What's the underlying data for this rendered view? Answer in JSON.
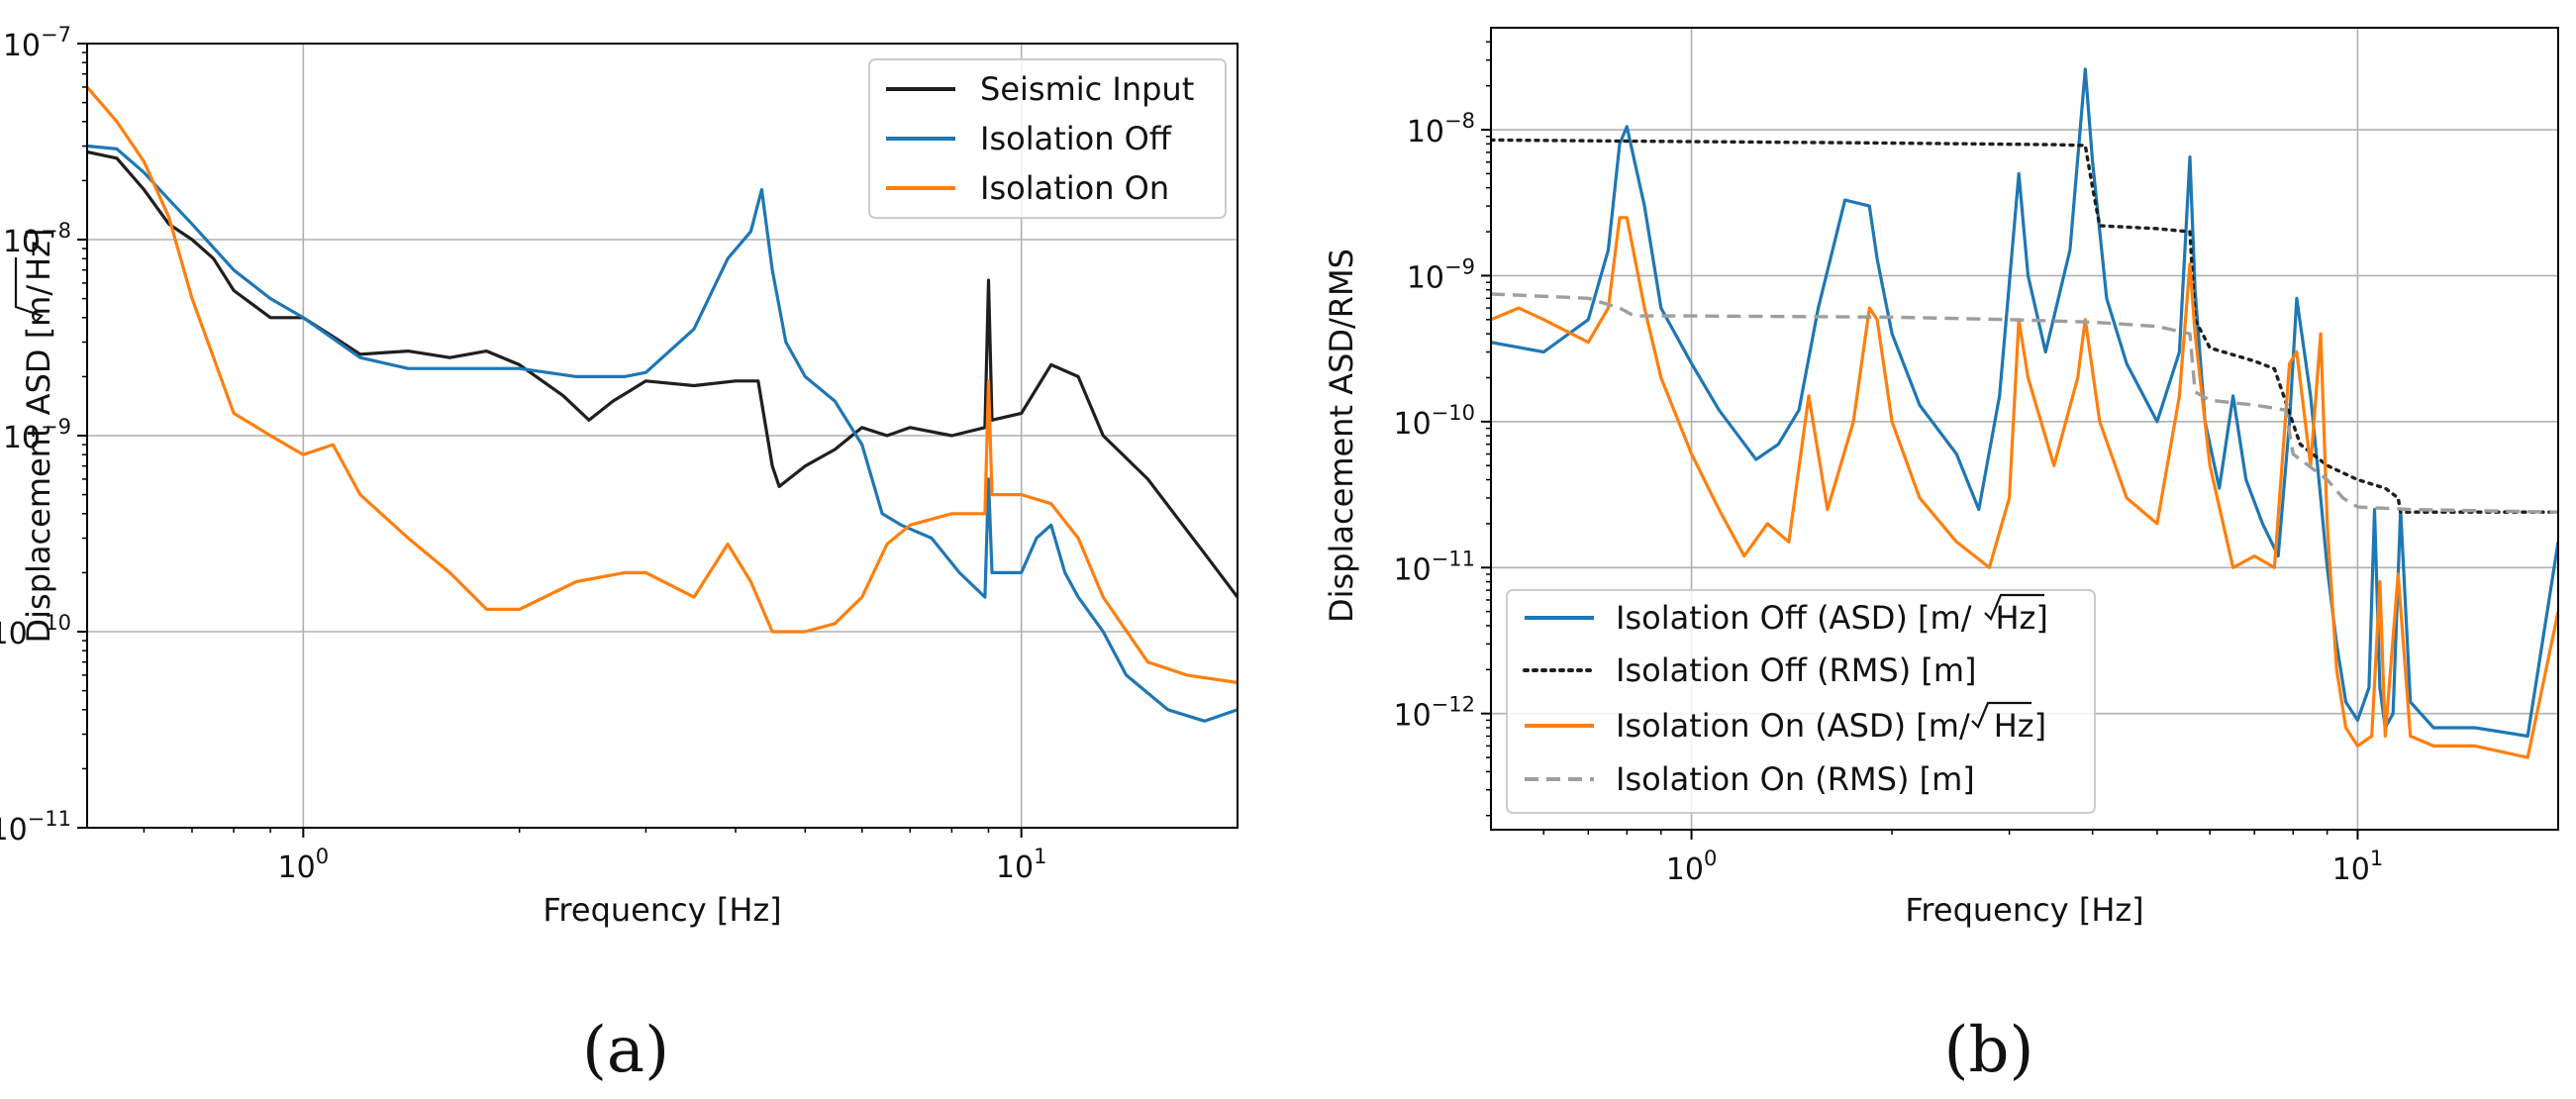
{
  "colors": {
    "black": "#1f1f1f",
    "blue": "#1f77b4",
    "orange": "#ff7f0e",
    "gray": "#9e9e9e",
    "grid": "#b0b0b0"
  },
  "chart_data": [
    {
      "id": "a",
      "panel_label": "(a)",
      "type": "line",
      "xscale": "log",
      "yscale": "log",
      "xlim": [
        0.5,
        20
      ],
      "ylim": [
        1e-11,
        1e-07
      ],
      "grid": true,
      "legend_position": "top-right",
      "xlabel": "Frequency [Hz]",
      "ylabel_prefix": "Displacement ASD [m/",
      "ylabel_radicand": "Hz",
      "ylabel_suffix": "]",
      "x_ticks": [
        {
          "value": 1,
          "base": "10",
          "exp": "0"
        },
        {
          "value": 10,
          "base": "10",
          "exp": "1"
        }
      ],
      "y_ticks": [
        {
          "value": 1e-07,
          "base": "10",
          "exp": "−7"
        },
        {
          "value": 1e-08,
          "base": "10",
          "exp": "−8"
        },
        {
          "value": 1e-09,
          "base": "10",
          "exp": "−9"
        },
        {
          "value": 1e-10,
          "base": "10",
          "exp": "−10"
        },
        {
          "value": 1e-11,
          "base": "10",
          "exp": "−11"
        }
      ],
      "series": [
        {
          "name": "Seismic Input",
          "legend_label": "Seismic Input",
          "color_key": "black",
          "dash": "solid",
          "x": [
            0.5,
            0.55,
            0.6,
            0.65,
            0.7,
            0.75,
            0.8,
            0.9,
            1.0,
            1.1,
            1.2,
            1.4,
            1.6,
            1.8,
            2.0,
            2.3,
            2.5,
            2.7,
            3.0,
            3.5,
            4.0,
            4.3,
            4.5,
            4.6,
            5.0,
            5.5,
            6.0,
            6.5,
            7.0,
            8.0,
            8.9,
            9.0,
            9.1,
            10.0,
            11.0,
            12.0,
            13.0,
            15.0,
            18.0,
            20.0
          ],
          "y": [
            2.8e-08,
            2.6e-08,
            1.8e-08,
            1.2e-08,
            1e-08,
            8e-09,
            5.5e-09,
            4e-09,
            4e-09,
            3.2e-09,
            2.6e-09,
            2.7e-09,
            2.5e-09,
            2.7e-09,
            2.3e-09,
            1.6e-09,
            1.2e-09,
            1.5e-09,
            1.9e-09,
            1.8e-09,
            1.9e-09,
            1.9e-09,
            7e-10,
            5.5e-10,
            7e-10,
            8.5e-10,
            1.1e-09,
            1e-09,
            1.1e-09,
            1e-09,
            1.1e-09,
            6.2e-09,
            1.2e-09,
            1.3e-09,
            2.3e-09,
            2e-09,
            1e-09,
            6e-10,
            2.5e-10,
            1.5e-10
          ]
        },
        {
          "name": "Isolation Off",
          "legend_label": "Isolation Off",
          "color_key": "blue",
          "dash": "solid",
          "x": [
            0.5,
            0.55,
            0.6,
            0.65,
            0.7,
            0.8,
            0.9,
            1.0,
            1.2,
            1.4,
            1.6,
            1.8,
            2.0,
            2.4,
            2.8,
            3.0,
            3.5,
            3.9,
            4.2,
            4.35,
            4.5,
            4.7,
            5.0,
            5.5,
            6.0,
            6.4,
            6.8,
            7.5,
            8.2,
            8.9,
            9.0,
            9.1,
            10.0,
            10.5,
            11.0,
            11.5,
            12.0,
            13.0,
            14.0,
            16.0,
            18.0,
            20.0
          ],
          "y": [
            3e-08,
            2.9e-08,
            2.2e-08,
            1.6e-08,
            1.2e-08,
            7e-09,
            5e-09,
            4e-09,
            2.5e-09,
            2.2e-09,
            2.2e-09,
            2.2e-09,
            2.2e-09,
            2e-09,
            2e-09,
            2.1e-09,
            3.5e-09,
            8e-09,
            1.1e-08,
            1.8e-08,
            7e-09,
            3e-09,
            2e-09,
            1.5e-09,
            9e-10,
            4e-10,
            3.5e-10,
            3e-10,
            2e-10,
            1.5e-10,
            6e-10,
            2e-10,
            2e-10,
            3e-10,
            3.5e-10,
            2e-10,
            1.5e-10,
            1e-10,
            6e-11,
            4e-11,
            3.5e-11,
            4e-11
          ]
        },
        {
          "name": "Isolation On",
          "legend_label": "Isolation On",
          "color_key": "orange",
          "dash": "solid",
          "x": [
            0.5,
            0.55,
            0.6,
            0.65,
            0.7,
            0.75,
            0.8,
            0.9,
            1.0,
            1.1,
            1.2,
            1.4,
            1.6,
            1.8,
            2.0,
            2.4,
            2.8,
            3.0,
            3.5,
            3.9,
            4.2,
            4.5,
            5.0,
            5.5,
            6.0,
            6.5,
            7.0,
            8.0,
            8.9,
            9.0,
            9.1,
            10.0,
            11.0,
            12.0,
            13.0,
            15.0,
            17.0,
            20.0
          ],
          "y": [
            6e-08,
            4e-08,
            2.5e-08,
            1.3e-08,
            5e-09,
            2.5e-09,
            1.3e-09,
            1e-09,
            8e-10,
            9e-10,
            5e-10,
            3e-10,
            2e-10,
            1.3e-10,
            1.3e-10,
            1.8e-10,
            2e-10,
            2e-10,
            1.5e-10,
            2.8e-10,
            1.8e-10,
            1e-10,
            1e-10,
            1.1e-10,
            1.5e-10,
            2.8e-10,
            3.5e-10,
            4e-10,
            4e-10,
            1.9e-09,
            5e-10,
            5e-10,
            4.5e-10,
            3e-10,
            1.5e-10,
            7e-11,
            6e-11,
            5.5e-11
          ]
        }
      ]
    },
    {
      "id": "b",
      "panel_label": "(b)",
      "type": "line",
      "xscale": "log",
      "yscale": "log",
      "xlim": [
        0.5,
        20
      ],
      "ylim": [
        1.6e-13,
        5e-08
      ],
      "grid": true,
      "legend_position": "bottom-left",
      "xlabel": "Frequency [Hz]",
      "ylabel": "Displacement ASD/RMS",
      "x_ticks": [
        {
          "value": 1,
          "base": "10",
          "exp": "0"
        },
        {
          "value": 10,
          "base": "10",
          "exp": "1"
        }
      ],
      "y_ticks": [
        {
          "value": 1e-08,
          "base": "10",
          "exp": "−8"
        },
        {
          "value": 1e-09,
          "base": "10",
          "exp": "−9"
        },
        {
          "value": 1e-10,
          "base": "10",
          "exp": "−10"
        },
        {
          "value": 1e-11,
          "base": "10",
          "exp": "−11"
        },
        {
          "value": 1e-12,
          "base": "10",
          "exp": "−12"
        }
      ],
      "series": [
        {
          "name": "Isolation Off (ASD)",
          "legend_prefix": "Isolation Off (ASD) [m/",
          "legend_radicand": "Hz",
          "legend_suffix": "]",
          "color_key": "blue",
          "dash": "solid",
          "x": [
            0.5,
            0.6,
            0.7,
            0.75,
            0.78,
            0.8,
            0.85,
            0.9,
            1.0,
            1.1,
            1.25,
            1.35,
            1.45,
            1.55,
            1.7,
            1.85,
            1.9,
            2.0,
            2.2,
            2.5,
            2.7,
            2.9,
            3.1,
            3.2,
            3.4,
            3.7,
            3.9,
            4.0,
            4.2,
            4.5,
            5.0,
            5.4,
            5.6,
            5.7,
            5.9,
            6.2,
            6.5,
            6.8,
            7.2,
            7.6,
            7.9,
            8.1,
            8.5,
            8.8,
            9.0,
            9.3,
            9.6,
            10.0,
            10.4,
            10.6,
            10.8,
            11.0,
            11.3,
            11.6,
            12.0,
            13.0,
            15.0,
            18.0,
            20.0
          ],
          "y": [
            3.5e-10,
            3e-10,
            5e-10,
            1.5e-09,
            8e-09,
            1.05e-08,
            3e-09,
            6e-10,
            2.5e-10,
            1.2e-10,
            5.5e-11,
            7e-11,
            1.2e-10,
            6e-10,
            3.3e-09,
            3e-09,
            1.3e-09,
            4e-10,
            1.3e-10,
            6e-11,
            2.5e-11,
            1.5e-10,
            5e-09,
            1e-09,
            3e-10,
            1.5e-09,
            2.6e-08,
            6e-09,
            7e-10,
            2.5e-10,
            1e-10,
            3e-10,
            6.5e-09,
            8e-10,
            1e-10,
            3.5e-11,
            1.5e-10,
            4e-11,
            2e-11,
            1.2e-11,
            1e-10,
            7e-10,
            1.5e-10,
            3e-11,
            1e-11,
            3e-12,
            1.2e-12,
            9e-13,
            1.5e-12,
            2.5e-11,
            1.5e-12,
            8e-13,
            1e-12,
            2.5e-11,
            1.2e-12,
            8e-13,
            8e-13,
            7e-13,
            1.5e-11
          ]
        },
        {
          "name": "Isolation Off (RMS)",
          "legend_label": "Isolation Off (RMS) [m]",
          "color_key": "black",
          "dash": "dotted",
          "x": [
            0.5,
            1.0,
            2.0,
            3.5,
            3.9,
            4.0,
            4.1,
            5.0,
            5.6,
            5.7,
            6.0,
            7.0,
            7.5,
            8.2,
            9.0,
            10.0,
            11.0,
            11.5,
            11.6,
            20.0
          ],
          "y": [
            8.5e-09,
            8.3e-09,
            8.1e-09,
            7.9e-09,
            7.8e-09,
            4e-09,
            2.2e-09,
            2.1e-09,
            2e-09,
            5e-10,
            3.2e-10,
            2.6e-10,
            2.3e-10,
            7e-11,
            5e-11,
            4e-11,
            3.5e-11,
            3e-11,
            2.4e-11,
            2.4e-11
          ]
        },
        {
          "name": "Isolation On (ASD)",
          "legend_prefix": "Isolation On (ASD) [m/",
          "legend_radicand": "Hz",
          "legend_suffix": "]",
          "color_key": "orange",
          "dash": "solid",
          "x": [
            0.5,
            0.55,
            0.6,
            0.7,
            0.75,
            0.78,
            0.8,
            0.85,
            0.9,
            1.0,
            1.1,
            1.2,
            1.3,
            1.4,
            1.5,
            1.6,
            1.75,
            1.85,
            1.9,
            2.0,
            2.2,
            2.5,
            2.8,
            3.0,
            3.1,
            3.2,
            3.5,
            3.8,
            3.9,
            4.1,
            4.5,
            5.0,
            5.4,
            5.6,
            5.7,
            6.0,
            6.5,
            7.0,
            7.5,
            7.9,
            8.1,
            8.5,
            8.8,
            9.0,
            9.3,
            9.6,
            10.0,
            10.5,
            10.8,
            11.0,
            11.5,
            12.0,
            13.0,
            15.0,
            18.0,
            20.0
          ],
          "y": [
            5e-10,
            6e-10,
            5e-10,
            3.5e-10,
            6e-10,
            2.5e-09,
            2.5e-09,
            6e-10,
            2e-10,
            6e-11,
            2.5e-11,
            1.2e-11,
            2e-11,
            1.5e-11,
            1.5e-10,
            2.5e-11,
            1e-10,
            6e-10,
            5e-10,
            1e-10,
            3e-11,
            1.5e-11,
            1e-11,
            3e-11,
            5e-10,
            2e-10,
            5e-11,
            2e-10,
            5e-10,
            1e-10,
            3e-11,
            2e-11,
            1.5e-10,
            1.2e-09,
            4e-10,
            5e-11,
            1e-11,
            1.2e-11,
            1e-11,
            2.5e-10,
            3e-10,
            5e-11,
            4e-10,
            2e-11,
            2e-12,
            8e-13,
            6e-13,
            7e-13,
            8e-12,
            7e-13,
            9e-12,
            7e-13,
            6e-13,
            6e-13,
            5e-13,
            5e-12
          ]
        },
        {
          "name": "Isolation On (RMS)",
          "legend_label": "Isolation On (RMS) [m]",
          "color_key": "gray",
          "dash": "dashed",
          "x": [
            0.5,
            0.7,
            0.78,
            0.82,
            1.0,
            2.0,
            3.0,
            4.0,
            5.0,
            5.6,
            5.7,
            6.0,
            7.0,
            7.8,
            8.0,
            9.0,
            9.5,
            10.0,
            12.0,
            20.0
          ],
          "y": [
            7.5e-10,
            7e-10,
            6e-10,
            5.3e-10,
            5.3e-10,
            5.2e-10,
            5e-10,
            4.8e-10,
            4.5e-10,
            4e-10,
            1.6e-10,
            1.4e-10,
            1.3e-10,
            1.2e-10,
            6e-11,
            4e-11,
            3e-11,
            2.6e-11,
            2.5e-11,
            2.4e-11
          ]
        }
      ]
    }
  ]
}
